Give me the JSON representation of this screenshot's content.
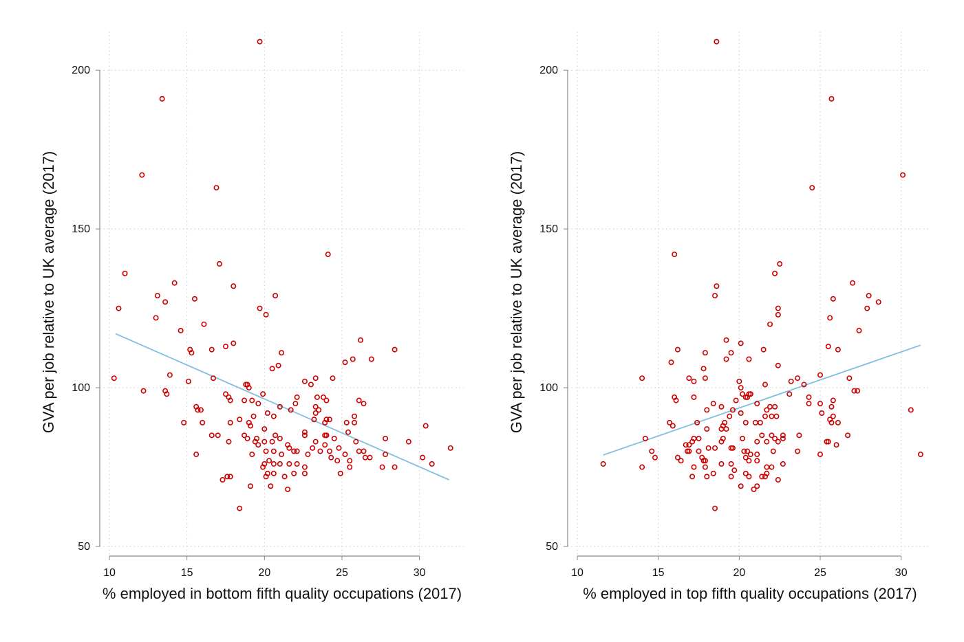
{
  "chart_data": [
    {
      "type": "scatter",
      "title": "",
      "xlabel": "% employed in bottom fifth quality occupations (2017)",
      "ylabel": "GVA per job relative to UK average (2017)",
      "xlim": [
        10,
        32.5
      ],
      "ylim": [
        50,
        210
      ],
      "xticks": [
        "10",
        "15",
        "20",
        "25",
        "30"
      ],
      "yticks": [
        "50",
        "100",
        "150",
        "200"
      ],
      "grid": true,
      "colors": {
        "points": "#cc0000",
        "fit_line": "#7fbfe0",
        "grid": "#c8c8c8",
        "axis": "#888888"
      },
      "fit_line": {
        "x": [
          10.4,
          31.9
        ],
        "y": [
          117,
          71
        ]
      },
      "points": [
        [
          19.7,
          209
        ],
        [
          13.4,
          191
        ],
        [
          12.1,
          167
        ],
        [
          16.9,
          163
        ],
        [
          24.1,
          142
        ],
        [
          17.1,
          139
        ],
        [
          11.0,
          136
        ],
        [
          14.2,
          133
        ],
        [
          18.0,
          132
        ],
        [
          13.1,
          129
        ],
        [
          20.7,
          129
        ],
        [
          15.5,
          128
        ],
        [
          13.6,
          127
        ],
        [
          10.6,
          125
        ],
        [
          19.7,
          125
        ],
        [
          20.1,
          123
        ],
        [
          13.0,
          122
        ],
        [
          16.1,
          120
        ],
        [
          14.6,
          118
        ],
        [
          18.0,
          114
        ],
        [
          17.5,
          113
        ],
        [
          15.2,
          112
        ],
        [
          16.6,
          112
        ],
        [
          28.4,
          112
        ],
        [
          15.3,
          111
        ],
        [
          21.1,
          111
        ],
        [
          26.2,
          115
        ],
        [
          25.7,
          109
        ],
        [
          25.2,
          108
        ],
        [
          26.9,
          109
        ],
        [
          20.9,
          107
        ],
        [
          20.5,
          106
        ],
        [
          13.9,
          104
        ],
        [
          16.7,
          103
        ],
        [
          10.3,
          103
        ],
        [
          15.1,
          102
        ],
        [
          22.6,
          102
        ],
        [
          23.0,
          101
        ],
        [
          23.3,
          103
        ],
        [
          24.4,
          103
        ],
        [
          18.8,
          101
        ],
        [
          18.9,
          101
        ],
        [
          19.0,
          100
        ],
        [
          12.2,
          99
        ],
        [
          13.6,
          99
        ],
        [
          13.7,
          98
        ],
        [
          17.5,
          98
        ],
        [
          19.9,
          98
        ],
        [
          17.7,
          97
        ],
        [
          22.1,
          97
        ],
        [
          23.4,
          97
        ],
        [
          23.8,
          97
        ],
        [
          24.0,
          96
        ],
        [
          17.8,
          96
        ],
        [
          18.7,
          96
        ],
        [
          19.2,
          96
        ],
        [
          19.6,
          95
        ],
        [
          26.1,
          96
        ],
        [
          26.4,
          95
        ],
        [
          22.0,
          95
        ],
        [
          23.3,
          94
        ],
        [
          21.0,
          94
        ],
        [
          15.6,
          94
        ],
        [
          15.7,
          93
        ],
        [
          15.9,
          93
        ],
        [
          21.7,
          93
        ],
        [
          23.5,
          93
        ],
        [
          20.2,
          92
        ],
        [
          20.6,
          91
        ],
        [
          23.3,
          92
        ],
        [
          19.3,
          91
        ],
        [
          25.8,
          91
        ],
        [
          23.2,
          90
        ],
        [
          24.0,
          90
        ],
        [
          24.2,
          90
        ],
        [
          23.9,
          89
        ],
        [
          25.3,
          89
        ],
        [
          25.8,
          89
        ],
        [
          14.8,
          89
        ],
        [
          16.0,
          89
        ],
        [
          17.8,
          89
        ],
        [
          18.4,
          90
        ],
        [
          19.1,
          88
        ],
        [
          19.0,
          89
        ],
        [
          30.4,
          88
        ],
        [
          20.0,
          87
        ],
        [
          22.6,
          86
        ],
        [
          22.6,
          85
        ],
        [
          25.4,
          86
        ],
        [
          18.7,
          85
        ],
        [
          20.7,
          85
        ],
        [
          21.0,
          84
        ],
        [
          17.0,
          85
        ],
        [
          16.6,
          85
        ],
        [
          18.9,
          84
        ],
        [
          19.4,
          83
        ],
        [
          19.5,
          84
        ],
        [
          20.0,
          83
        ],
        [
          20.5,
          83
        ],
        [
          21.5,
          82
        ],
        [
          23.9,
          85
        ],
        [
          24.0,
          85
        ],
        [
          24.5,
          84
        ],
        [
          25.9,
          83
        ],
        [
          27.8,
          84
        ],
        [
          17.7,
          83
        ],
        [
          19.6,
          82
        ],
        [
          21.9,
          80
        ],
        [
          22.1,
          80
        ],
        [
          22.8,
          79
        ],
        [
          23.1,
          81
        ],
        [
          23.3,
          83
        ],
        [
          23.9,
          82
        ],
        [
          24.2,
          80
        ],
        [
          24.8,
          81
        ],
        [
          25.2,
          79
        ],
        [
          26.1,
          80
        ],
        [
          26.4,
          80
        ],
        [
          29.3,
          83
        ],
        [
          32.0,
          81
        ],
        [
          20.1,
          80
        ],
        [
          20.6,
          80
        ],
        [
          21.1,
          79
        ],
        [
          21.6,
          81
        ],
        [
          23.6,
          80
        ],
        [
          24.3,
          78
        ],
        [
          24.7,
          77
        ],
        [
          25.5,
          77
        ],
        [
          26.5,
          78
        ],
        [
          26.8,
          78
        ],
        [
          27.8,
          79
        ],
        [
          30.2,
          78
        ],
        [
          30.8,
          76
        ],
        [
          28.4,
          75
        ],
        [
          27.6,
          75
        ],
        [
          15.6,
          79
        ],
        [
          19.2,
          79
        ],
        [
          20.0,
          76
        ],
        [
          20.3,
          77
        ],
        [
          20.6,
          76
        ],
        [
          21.0,
          76
        ],
        [
          21.6,
          76
        ],
        [
          22.1,
          76
        ],
        [
          19.9,
          75
        ],
        [
          22.6,
          75
        ],
        [
          25.5,
          75
        ],
        [
          20.2,
          73
        ],
        [
          20.6,
          73
        ],
        [
          21.3,
          72
        ],
        [
          21.9,
          73
        ],
        [
          22.6,
          73
        ],
        [
          24.9,
          73
        ],
        [
          17.3,
          71
        ],
        [
          17.6,
          72
        ],
        [
          17.8,
          72
        ],
        [
          20.1,
          72
        ],
        [
          19.1,
          69
        ],
        [
          20.4,
          69
        ],
        [
          21.5,
          68
        ],
        [
          18.4,
          62
        ]
      ]
    },
    {
      "type": "scatter",
      "title": "",
      "xlabel": "% employed in top fifth quality occupations (2017)",
      "ylabel": "GVA per job relative to UK average (2017)",
      "xlim": [
        10,
        31.5
      ],
      "ylim": [
        50,
        210
      ],
      "xticks": [
        "10",
        "15",
        "20",
        "25",
        "30"
      ],
      "yticks": [
        "50",
        "100",
        "150",
        "200"
      ],
      "grid": true,
      "colors": {
        "points": "#cc0000",
        "fit_line": "#7fbfe0",
        "grid": "#c8c8c8",
        "axis": "#888888"
      },
      "fit_line": {
        "x": [
          11.6,
          31.2
        ],
        "y": [
          78.8,
          113.4
        ]
      },
      "points": [
        [
          18.6,
          209
        ],
        [
          25.7,
          191
        ],
        [
          30.1,
          167
        ],
        [
          24.5,
          163
        ],
        [
          16.0,
          142
        ],
        [
          22.5,
          139
        ],
        [
          22.2,
          136
        ],
        [
          27.0,
          133
        ],
        [
          18.6,
          132
        ],
        [
          28.0,
          129
        ],
        [
          18.5,
          129
        ],
        [
          25.8,
          128
        ],
        [
          28.6,
          127
        ],
        [
          22.4,
          125
        ],
        [
          27.9,
          125
        ],
        [
          22.4,
          123
        ],
        [
          25.6,
          122
        ],
        [
          21.9,
          120
        ],
        [
          27.4,
          118
        ],
        [
          19.2,
          115
        ],
        [
          20.1,
          114
        ],
        [
          16.2,
          112
        ],
        [
          17.9,
          111
        ],
        [
          21.5,
          112
        ],
        [
          25.5,
          113
        ],
        [
          26.1,
          112
        ],
        [
          19.5,
          111
        ],
        [
          19.2,
          109
        ],
        [
          20.6,
          109
        ],
        [
          15.8,
          108
        ],
        [
          22.4,
          107
        ],
        [
          17.8,
          106
        ],
        [
          25.0,
          104
        ],
        [
          14.0,
          103
        ],
        [
          16.9,
          103
        ],
        [
          17.9,
          103
        ],
        [
          23.6,
          103
        ],
        [
          26.8,
          103
        ],
        [
          20.0,
          102
        ],
        [
          17.2,
          102
        ],
        [
          23.2,
          102
        ],
        [
          24.0,
          101
        ],
        [
          21.6,
          101
        ],
        [
          20.1,
          100
        ],
        [
          27.1,
          99
        ],
        [
          27.3,
          99
        ],
        [
          23.1,
          98
        ],
        [
          20.2,
          98
        ],
        [
          20.6,
          98
        ],
        [
          20.7,
          98
        ],
        [
          20.5,
          97
        ],
        [
          20.4,
          97
        ],
        [
          16.0,
          97
        ],
        [
          17.2,
          97
        ],
        [
          19.8,
          96
        ],
        [
          24.3,
          97
        ],
        [
          25.8,
          96
        ],
        [
          16.1,
          96
        ],
        [
          24.3,
          95
        ],
        [
          25.0,
          95
        ],
        [
          25.7,
          94
        ],
        [
          21.1,
          95
        ],
        [
          21.9,
          94
        ],
        [
          22.2,
          94
        ],
        [
          18.4,
          95
        ],
        [
          18.0,
          93
        ],
        [
          19.6,
          93
        ],
        [
          18.9,
          94
        ],
        [
          21.7,
          93
        ],
        [
          25.1,
          92
        ],
        [
          21.6,
          91
        ],
        [
          22.0,
          91
        ],
        [
          22.3,
          91
        ],
        [
          20.1,
          92
        ],
        [
          19.4,
          91
        ],
        [
          25.6,
          90
        ],
        [
          25.7,
          89
        ],
        [
          26.1,
          89
        ],
        [
          20.4,
          89
        ],
        [
          21.0,
          89
        ],
        [
          21.3,
          89
        ],
        [
          15.7,
          89
        ],
        [
          17.4,
          89
        ],
        [
          19.1,
          89
        ],
        [
          19.0,
          88
        ],
        [
          19.2,
          87
        ],
        [
          15.9,
          88
        ],
        [
          18.0,
          87
        ],
        [
          18.9,
          87
        ],
        [
          21.4,
          85
        ],
        [
          22.0,
          85
        ],
        [
          22.2,
          84
        ],
        [
          22.7,
          85
        ],
        [
          22.7,
          84
        ],
        [
          26.7,
          85
        ],
        [
          23.7,
          85
        ],
        [
          14.2,
          84
        ],
        [
          17.2,
          84
        ],
        [
          17.5,
          84
        ],
        [
          19.0,
          84
        ],
        [
          18.9,
          83
        ],
        [
          20.2,
          84
        ],
        [
          21.1,
          83
        ],
        [
          22.4,
          83
        ],
        [
          21.7,
          83
        ],
        [
          25.4,
          83
        ],
        [
          25.5,
          83
        ],
        [
          26.0,
          82
        ],
        [
          16.7,
          82
        ],
        [
          16.9,
          82
        ],
        [
          17.1,
          83
        ],
        [
          18.1,
          81
        ],
        [
          18.5,
          81
        ],
        [
          19.5,
          81
        ],
        [
          19.6,
          81
        ],
        [
          20.3,
          80
        ],
        [
          20.5,
          80
        ],
        [
          20.7,
          79
        ],
        [
          21.1,
          79
        ],
        [
          22.1,
          80
        ],
        [
          23.6,
          80
        ],
        [
          25.0,
          79
        ],
        [
          31.2,
          79
        ],
        [
          14.6,
          80
        ],
        [
          16.2,
          78
        ],
        [
          16.4,
          77
        ],
        [
          16.8,
          80
        ],
        [
          16.9,
          80
        ],
        [
          17.5,
          80
        ],
        [
          17.7,
          78
        ],
        [
          17.8,
          77
        ],
        [
          17.9,
          77
        ],
        [
          20.4,
          78
        ],
        [
          20.6,
          77
        ],
        [
          21.1,
          77
        ],
        [
          22.7,
          76
        ],
        [
          21.7,
          75
        ],
        [
          22.0,
          75
        ],
        [
          18.9,
          76
        ],
        [
          19.5,
          76
        ],
        [
          19.7,
          74
        ],
        [
          11.6,
          76
        ],
        [
          14.0,
          75
        ],
        [
          14.8,
          78
        ],
        [
          17.2,
          75
        ],
        [
          17.9,
          75
        ],
        [
          17.1,
          72
        ],
        [
          18.0,
          72
        ],
        [
          18.4,
          73
        ],
        [
          19.5,
          72
        ],
        [
          20.4,
          73
        ],
        [
          20.6,
          72
        ],
        [
          21.4,
          72
        ],
        [
          21.6,
          72
        ],
        [
          21.7,
          73
        ],
        [
          22.4,
          71
        ],
        [
          20.1,
          69
        ],
        [
          21.1,
          69
        ],
        [
          20.9,
          68
        ],
        [
          18.5,
          62
        ],
        [
          25.8,
          91
        ],
        [
          30.6,
          93
        ]
      ]
    }
  ]
}
